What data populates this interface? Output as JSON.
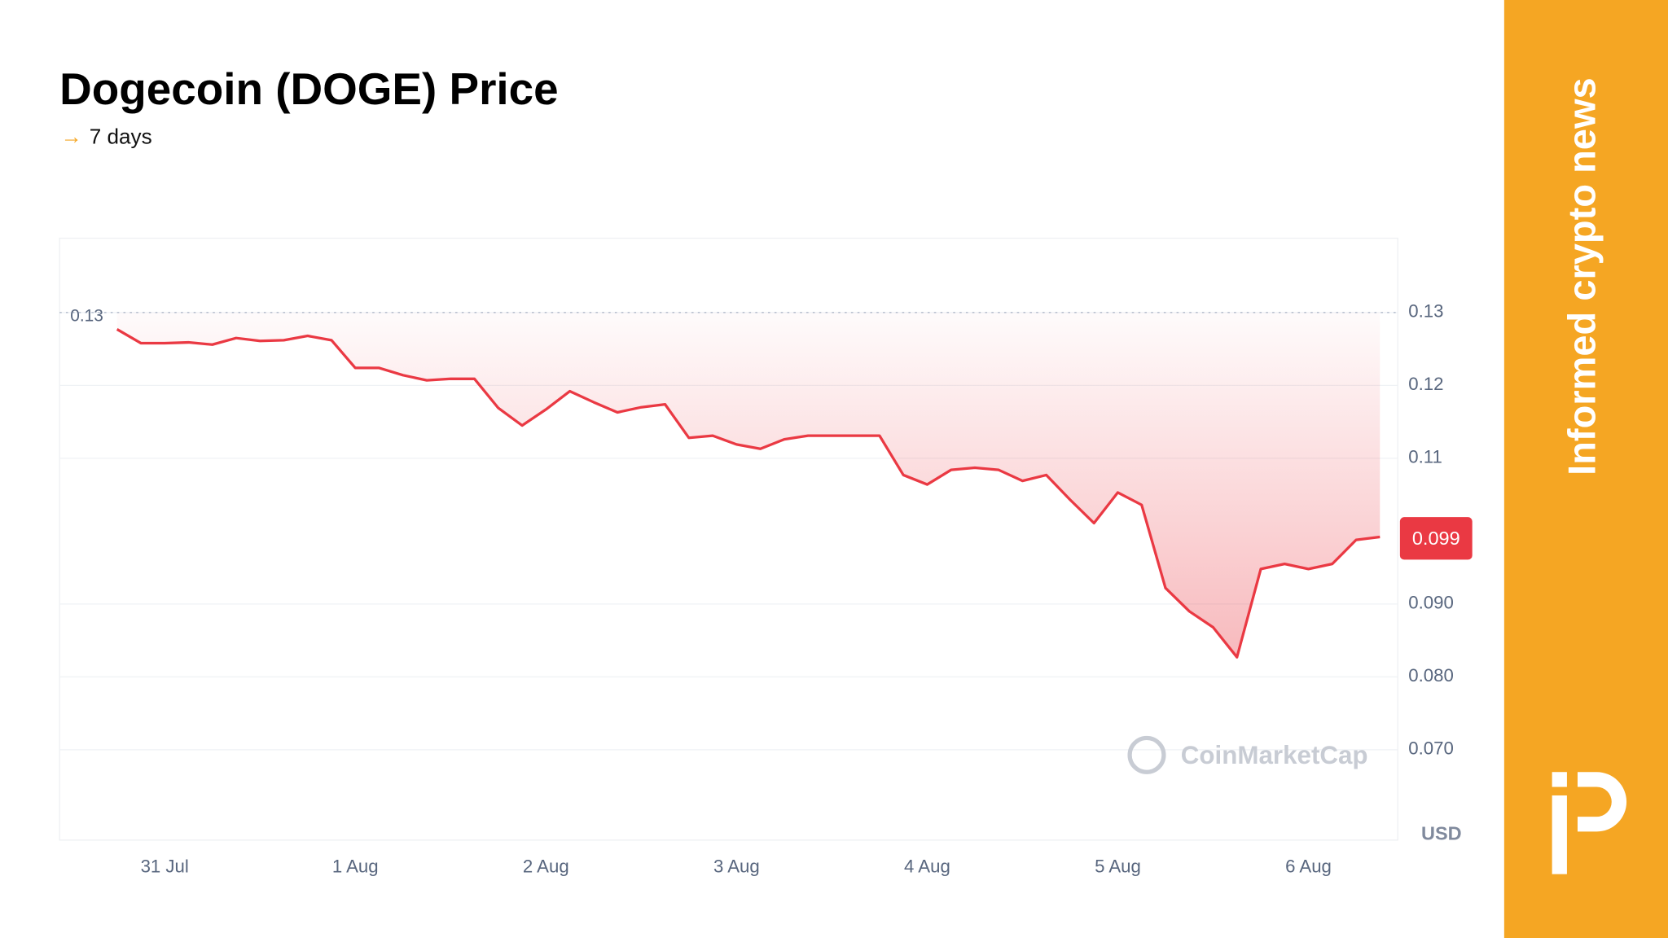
{
  "chart_data": {
    "type": "line",
    "title": "Dogecoin (DOGE) Price",
    "subtitle": "7 days",
    "categories": [
      null,
      null,
      "31 Jul",
      null,
      null,
      null,
      null,
      null,
      null,
      null,
      "1 Aug",
      null,
      null,
      null,
      null,
      null,
      null,
      null,
      "2 Aug",
      null,
      null,
      null,
      null,
      null,
      null,
      null,
      "3 Aug",
      null,
      null,
      null,
      null,
      null,
      null,
      null,
      "4 Aug",
      null,
      null,
      null,
      null,
      null,
      null,
      null,
      "5 Aug",
      null,
      null,
      null,
      null,
      null,
      null,
      null,
      "6 Aug",
      null,
      null,
      null
    ],
    "series": [
      {
        "name": "DOGE",
        "color": "#ea3943",
        "values": [
          0.1277,
          0.1258,
          0.1258,
          0.1259,
          0.1256,
          0.1265,
          0.1261,
          0.1262,
          0.1268,
          0.1262,
          0.1224,
          0.1224,
          0.1214,
          0.1207,
          0.1209,
          0.1209,
          0.1169,
          0.1145,
          0.1167,
          0.1192,
          0.1177,
          0.1163,
          0.117,
          0.1174,
          0.1128,
          0.1131,
          0.1119,
          0.1113,
          0.1126,
          0.1131,
          0.1131,
          0.1131,
          0.1131,
          0.1077,
          0.1064,
          0.1084,
          0.1087,
          0.1084,
          0.1069,
          0.1077,
          0.1043,
          0.1011,
          0.1053,
          0.1036,
          0.0922,
          0.089,
          0.0868,
          0.0827,
          0.0948,
          0.0955,
          0.0948,
          0.0955,
          0.0988,
          0.0992
        ]
      }
    ],
    "ylim": [
      0.0576,
      0.1402
    ],
    "yticks": [
      {
        "value": 0.07,
        "label": "0.070"
      },
      {
        "value": 0.08,
        "label": "0.080"
      },
      {
        "value": 0.09,
        "label": "0.090"
      },
      0.11,
      0.12,
      0.13
    ],
    "y_axis_label": "USD",
    "grid": true,
    "reference_value": 0.13,
    "last_value": 0.099,
    "watermark": "CoinMarketCap"
  },
  "sidebar": {
    "tagline": "Informed crypto news"
  }
}
